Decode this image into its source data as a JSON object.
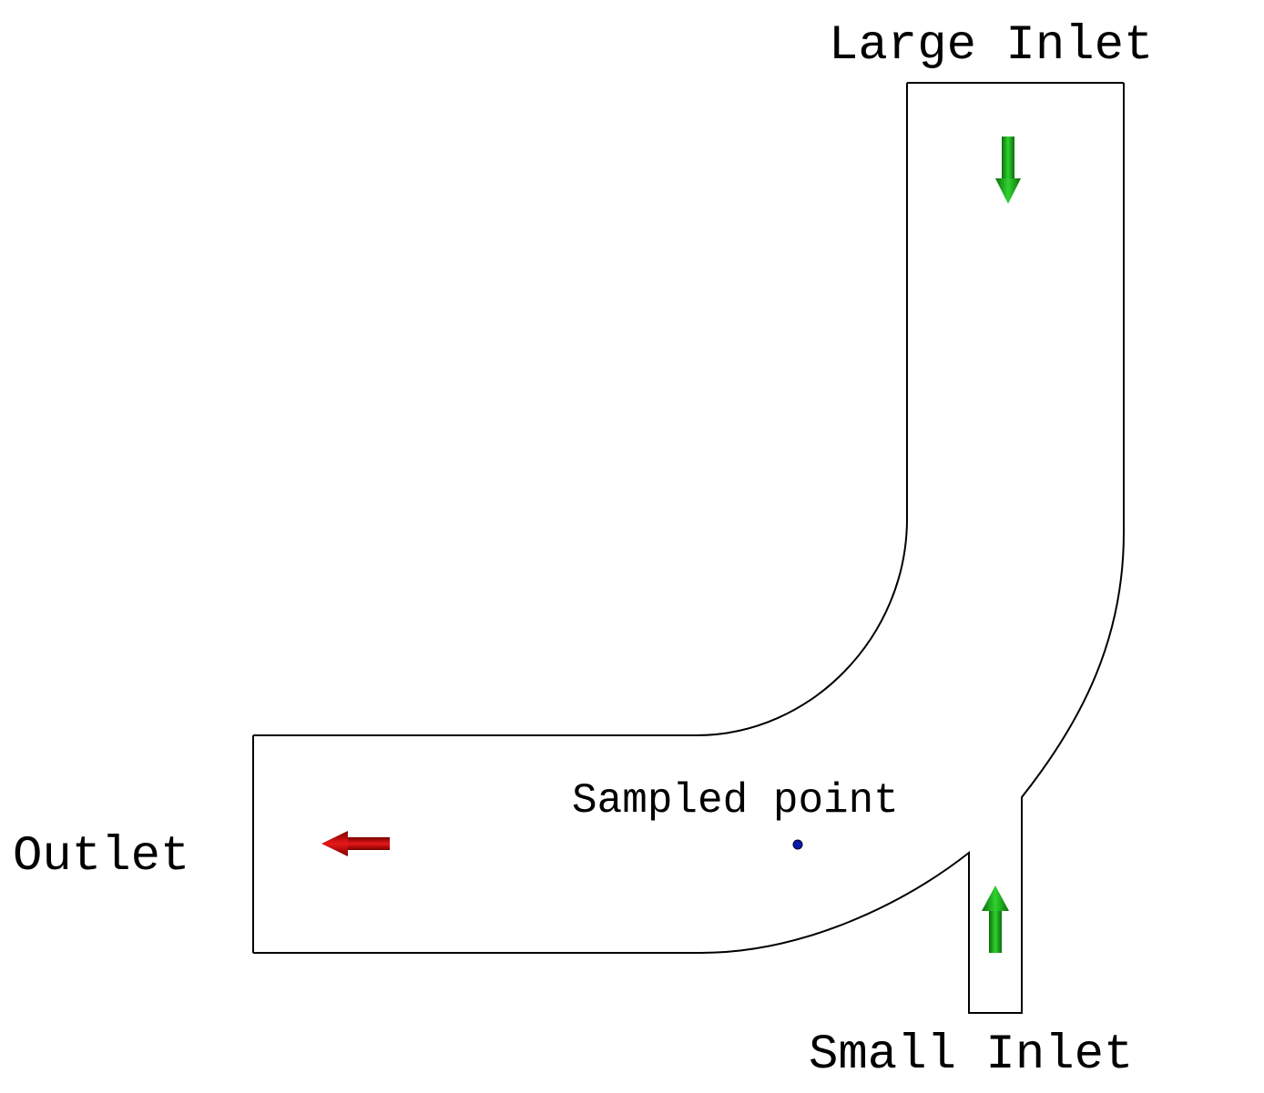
{
  "labels": {
    "large_inlet": "Large Inlet",
    "small_inlet": "Small Inlet",
    "outlet": "Outlet",
    "sampled_point": "Sampled point"
  },
  "colors": {
    "background": "#ffffff",
    "outline": "#000000",
    "inflow_arrow": "#1fb81f",
    "inflow_arrow_dark": "#0b6e0b",
    "outflow_arrow": "#d01010",
    "outflow_arrow_dark": "#7a0000",
    "sample_point": "#0a1aa8"
  },
  "arrows": {
    "large_inlet": "down",
    "small_inlet": "up",
    "outlet": "left"
  }
}
